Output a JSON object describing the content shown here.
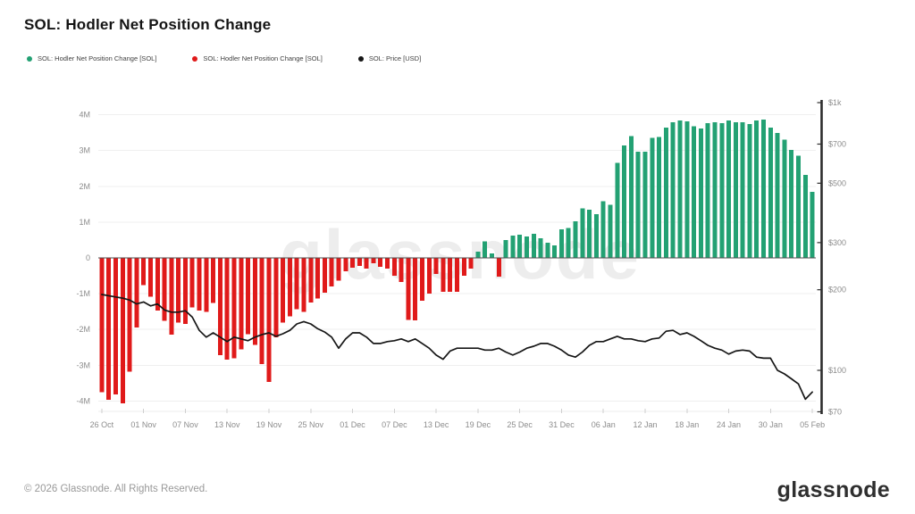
{
  "header": {
    "title": "SOL: Hodler Net Position Change"
  },
  "legend": {
    "items": [
      {
        "label": "SOL: Hodler Net Position Change [SOL]",
        "color": "#23a173"
      },
      {
        "label": "SOL: Hodler Net Position Change [SOL]",
        "color": "#e01a1a"
      },
      {
        "label": "SOL: Price [USD]",
        "color": "#161616"
      }
    ]
  },
  "watermark": "glassnode",
  "footer": {
    "copyright": "© 2026 Glassnode. All Rights Reserved.",
    "logo": "glassnode"
  },
  "chart_data": {
    "type": "combo",
    "title": "SOL: Hodler Net Position Change",
    "grid": "horizontal",
    "categories": [
      "26 Oct",
      "27 Oct",
      "28 Oct",
      "29 Oct",
      "30 Oct",
      "31 Oct",
      "01 Nov",
      "02 Nov",
      "03 Nov",
      "04 Nov",
      "05 Nov",
      "06 Nov",
      "07 Nov",
      "08 Nov",
      "09 Nov",
      "10 Nov",
      "11 Nov",
      "12 Nov",
      "13 Nov",
      "14 Nov",
      "15 Nov",
      "16 Nov",
      "17 Nov",
      "18 Nov",
      "19 Nov",
      "20 Nov",
      "21 Nov",
      "22 Nov",
      "23 Nov",
      "24 Nov",
      "25 Nov",
      "26 Nov",
      "27 Nov",
      "28 Nov",
      "29 Nov",
      "30 Nov",
      "01 Dec",
      "02 Dec",
      "03 Dec",
      "04 Dec",
      "05 Dec",
      "06 Dec",
      "07 Dec",
      "08 Dec",
      "09 Dec",
      "10 Dec",
      "11 Dec",
      "12 Dec",
      "13 Dec",
      "14 Dec",
      "15 Dec",
      "16 Dec",
      "17 Dec",
      "18 Dec",
      "19 Dec",
      "20 Dec",
      "21 Dec",
      "22 Dec",
      "23 Dec",
      "24 Dec",
      "25 Dec",
      "26 Dec",
      "27 Dec",
      "28 Dec",
      "29 Dec",
      "30 Dec",
      "31 Dec",
      "01 Jan",
      "02 Jan",
      "03 Jan",
      "04 Jan",
      "05 Jan",
      "06 Jan",
      "07 Jan",
      "08 Jan",
      "09 Jan",
      "10 Jan",
      "11 Jan",
      "12 Jan",
      "13 Jan",
      "14 Jan",
      "15 Jan",
      "16 Jan",
      "17 Jan",
      "18 Jan",
      "19 Jan",
      "20 Jan",
      "21 Jan",
      "22 Jan",
      "23 Jan",
      "24 Jan",
      "25 Jan",
      "26 Jan",
      "27 Jan",
      "28 Jan",
      "29 Jan",
      "30 Jan",
      "31 Jan",
      "01 Feb",
      "02 Feb",
      "03 Feb",
      "04 Feb",
      "05 Feb"
    ],
    "series": [
      {
        "name": "SOL: Hodler Net Position Change [SOL]",
        "type": "bar",
        "axis": "left",
        "unit": "millions of SOL",
        "positive_color": "#23a173",
        "negative_color": "#e01a1a",
        "values": [
          -3.75,
          -3.97,
          -3.82,
          -4.07,
          -3.18,
          -1.95,
          -0.76,
          -1.09,
          -1.47,
          -1.76,
          -2.14,
          -1.81,
          -1.84,
          -1.39,
          -1.47,
          -1.51,
          -1.26,
          -2.72,
          -2.84,
          -2.81,
          -2.55,
          -2.13,
          -2.43,
          -2.97,
          -3.47,
          -2.22,
          -1.81,
          -1.63,
          -1.43,
          -1.51,
          -1.25,
          -1.13,
          -0.97,
          -0.8,
          -0.63,
          -0.38,
          -0.28,
          -0.22,
          -0.3,
          -0.15,
          -0.25,
          -0.3,
          -0.5,
          -0.67,
          -1.73,
          -1.75,
          -1.2,
          -1.0,
          -0.45,
          -0.95,
          -0.95,
          -0.95,
          -0.5,
          -0.3,
          0.18,
          0.46,
          0.12,
          -0.52,
          0.5,
          0.62,
          0.65,
          0.6,
          0.67,
          0.55,
          0.42,
          0.35,
          0.8,
          0.83,
          1.02,
          1.38,
          1.35,
          1.22,
          1.58,
          1.48,
          2.65,
          3.14,
          3.4,
          2.97,
          2.97,
          3.35,
          3.38,
          3.64,
          3.79,
          3.84,
          3.81,
          3.68,
          3.62,
          3.76,
          3.79,
          3.76,
          3.84,
          3.79,
          3.79,
          3.74,
          3.84,
          3.86,
          3.64,
          3.49,
          3.3,
          3.02,
          2.85,
          2.32,
          1.85
        ]
      },
      {
        "name": "SOL: Price [USD]",
        "type": "line",
        "axis": "right",
        "unit": "USD",
        "color": "#161616",
        "values": [
          192,
          190,
          188,
          186,
          183,
          177,
          180,
          174,
          177,
          168,
          165,
          165,
          167,
          158,
          141,
          133,
          138,
          133,
          128,
          133,
          131,
          129,
          133,
          136,
          138,
          134,
          137,
          141,
          149,
          152,
          149,
          143,
          139,
          133,
          121,
          131,
          138,
          138,
          133,
          126,
          126,
          128,
          129,
          131,
          128,
          131,
          126,
          121,
          114,
          110,
          118,
          121,
          121,
          121,
          121,
          119,
          119,
          121,
          117,
          114,
          117,
          121,
          123,
          126,
          126,
          123,
          119,
          114,
          112,
          117,
          124,
          128,
          128,
          131,
          134,
          131,
          131,
          129,
          128,
          131,
          132,
          140,
          141,
          136,
          138,
          134,
          129,
          124,
          121,
          119,
          115,
          118,
          119,
          118,
          112,
          111,
          111,
          100,
          97,
          93,
          89,
          78,
          83
        ]
      }
    ],
    "left_axis": {
      "unit": "M",
      "range": [
        -4.35,
        4.35
      ],
      "ticks": [
        {
          "value": 4,
          "label": "4M"
        },
        {
          "value": 3,
          "label": "3M"
        },
        {
          "value": 2,
          "label": "2M"
        },
        {
          "value": 1,
          "label": "1M"
        },
        {
          "value": 0,
          "label": "0"
        },
        {
          "value": -1,
          "label": "-1M"
        },
        {
          "value": -2,
          "label": "-2M"
        },
        {
          "value": -3,
          "label": "-3M"
        },
        {
          "value": -4,
          "label": "-4M"
        }
      ]
    },
    "right_axis": {
      "scale": "log",
      "range": [
        70,
        1000
      ],
      "ticks": [
        {
          "value": 1000,
          "label": "$1k"
        },
        {
          "value": 700,
          "label": "$700"
        },
        {
          "value": 500,
          "label": "$500"
        },
        {
          "value": 300,
          "label": "$300"
        },
        {
          "value": 200,
          "label": "$200"
        },
        {
          "value": 100,
          "label": "$100"
        },
        {
          "value": 70,
          "label": "$70"
        }
      ]
    },
    "x_ticks": [
      {
        "index": 0,
        "label": "26 Oct"
      },
      {
        "index": 6,
        "label": "01 Nov"
      },
      {
        "index": 12,
        "label": "07 Nov"
      },
      {
        "index": 18,
        "label": "13 Nov"
      },
      {
        "index": 24,
        "label": "19 Nov"
      },
      {
        "index": 30,
        "label": "25 Nov"
      },
      {
        "index": 36,
        "label": "01 Dec"
      },
      {
        "index": 42,
        "label": "07 Dec"
      },
      {
        "index": 48,
        "label": "13 Dec"
      },
      {
        "index": 54,
        "label": "19 Dec"
      },
      {
        "index": 60,
        "label": "25 Dec"
      },
      {
        "index": 66,
        "label": "31 Dec"
      },
      {
        "index": 72,
        "label": "06 Jan"
      },
      {
        "index": 78,
        "label": "12 Jan"
      },
      {
        "index": 84,
        "label": "18 Jan"
      },
      {
        "index": 90,
        "label": "24 Jan"
      },
      {
        "index": 96,
        "label": "30 Jan"
      },
      {
        "index": 102,
        "label": "05 Feb"
      }
    ]
  }
}
